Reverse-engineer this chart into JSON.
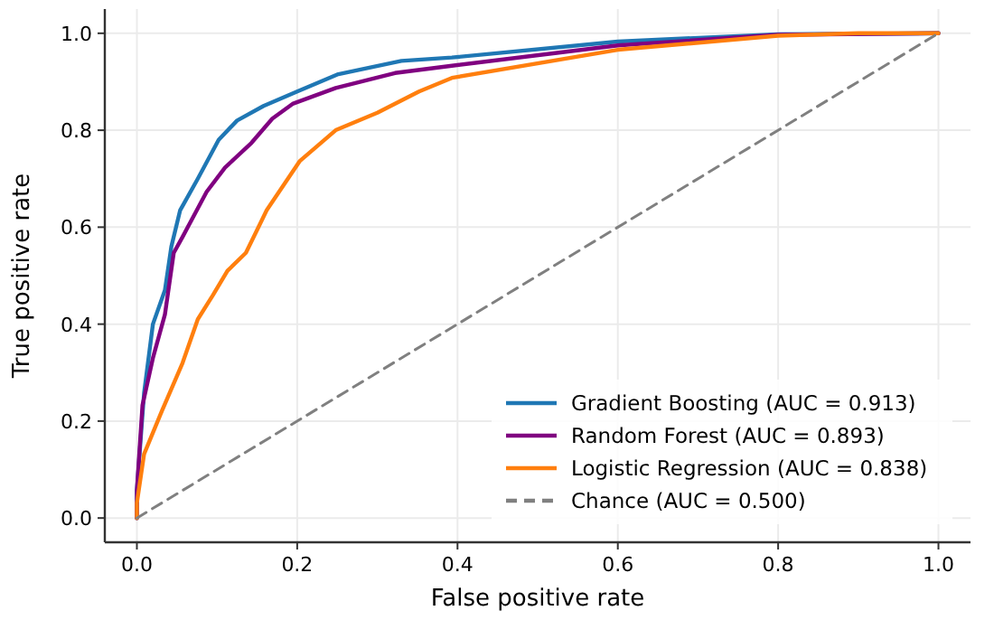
{
  "chart_data": {
    "type": "line",
    "xlabel": "False positive rate",
    "ylabel": "True positive rate",
    "xlim": [
      -0.04,
      1.04
    ],
    "ylim": [
      -0.05,
      1.05
    ],
    "xticks": [
      {
        "value": 0,
        "label": "0.0"
      },
      {
        "value": 0.2,
        "label": "0.2"
      },
      {
        "value": 0.4,
        "label": "0.4"
      },
      {
        "value": 0.6,
        "label": "0.6"
      },
      {
        "value": 0.8,
        "label": "0.8"
      },
      {
        "value": 1,
        "label": "1.0"
      }
    ],
    "yticks": [
      {
        "value": 0,
        "label": "0.0"
      },
      {
        "value": 0.2,
        "label": "0.2"
      },
      {
        "value": 0.4,
        "label": "0.4"
      },
      {
        "value": 0.6,
        "label": "0.6"
      },
      {
        "value": 0.8,
        "label": "0.8"
      },
      {
        "value": 1,
        "label": "1.0"
      }
    ],
    "grid": true,
    "legend": "bottom right",
    "series": [
      {
        "name": "Gradient Boosting (AUC = 0.913)",
        "color": "#1f77b4",
        "line_style": "solid",
        "x": [
          0,
          0,
          0.009,
          0.02,
          0.035,
          0.043,
          0.054,
          0.076,
          0.102,
          0.125,
          0.158,
          0.2,
          0.25,
          0.33,
          0.393,
          0.6,
          0.8,
          1
        ],
        "values": [
          0,
          0.057,
          0.258,
          0.4,
          0.47,
          0.56,
          0.635,
          0.7,
          0.78,
          0.82,
          0.85,
          0.88,
          0.915,
          0.943,
          0.95,
          0.983,
          0.998,
          1
        ]
      },
      {
        "name": "Random Forest (AUC = 0.893)",
        "color": "#800080",
        "line_style": "solid",
        "x": [
          0,
          0,
          0.007,
          0.02,
          0.035,
          0.046,
          0.057,
          0.087,
          0.11,
          0.143,
          0.169,
          0.195,
          0.248,
          0.322,
          0.393,
          0.6,
          0.8,
          1
        ],
        "values": [
          0,
          0.057,
          0.233,
          0.33,
          0.42,
          0.547,
          0.58,
          0.673,
          0.723,
          0.774,
          0.824,
          0.855,
          0.887,
          0.918,
          0.933,
          0.975,
          0.997,
          1
        ]
      },
      {
        "name": "Logistic Regression (AUC = 0.838)",
        "color": "#ff7f0e",
        "line_style": "solid",
        "x": [
          0,
          0,
          0.009,
          0.031,
          0.057,
          0.076,
          0.095,
          0.113,
          0.136,
          0.162,
          0.203,
          0.248,
          0.3,
          0.352,
          0.393,
          0.6,
          0.8,
          0.9,
          1
        ],
        "values": [
          0,
          0.031,
          0.132,
          0.22,
          0.32,
          0.41,
          0.46,
          0.51,
          0.547,
          0.635,
          0.736,
          0.8,
          0.836,
          0.88,
          0.908,
          0.966,
          0.995,
          1,
          1
        ]
      },
      {
        "name": "Chance (AUC = 0.500)",
        "color": "#808080",
        "line_style": "dashed",
        "x": [
          0,
          1
        ],
        "values": [
          0,
          1
        ]
      }
    ]
  }
}
